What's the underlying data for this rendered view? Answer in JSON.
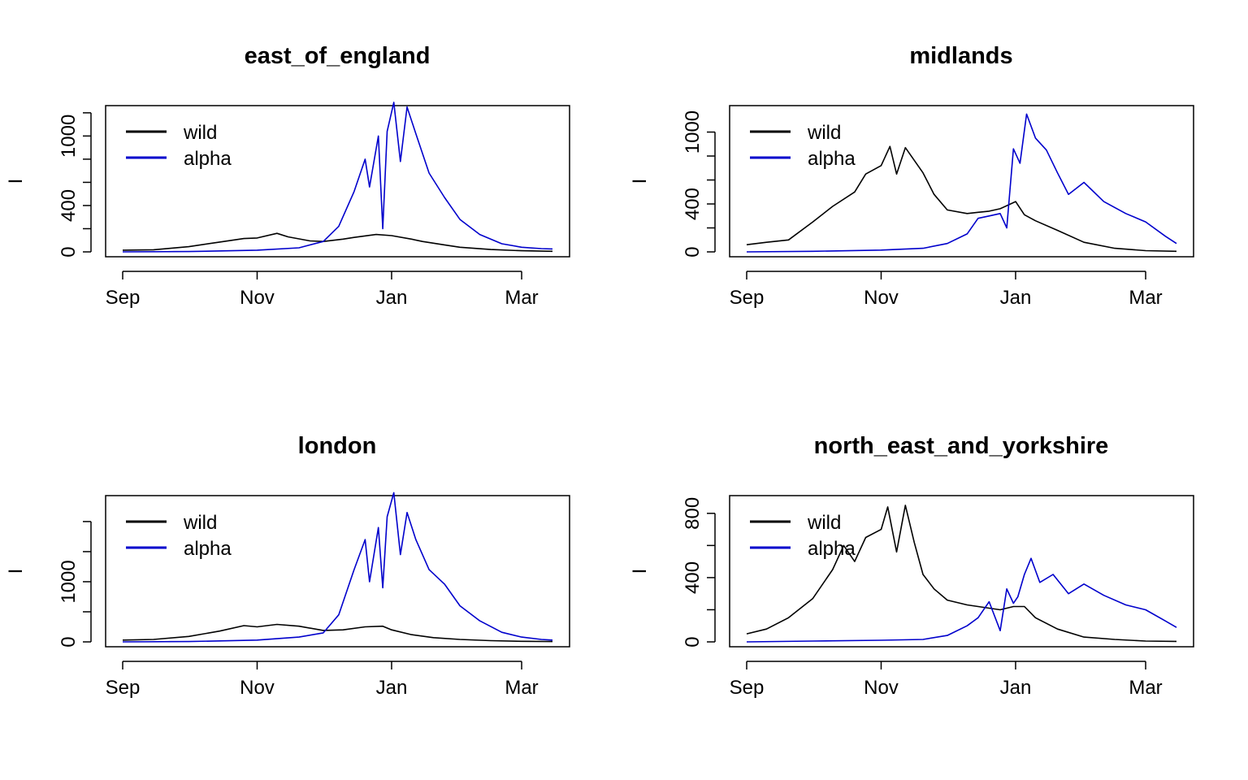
{
  "chart_data": [
    {
      "type": "line",
      "title": "east_of_england",
      "xlabel": "",
      "ylabel": "I",
      "x_ticks": [
        "Sep",
        "Nov",
        "Jan",
        "Mar"
      ],
      "y_ticks": [
        0,
        400,
        1000
      ],
      "ylim": [
        0,
        1220
      ],
      "legend_position": "top-left",
      "grid": false,
      "series": [
        {
          "name": "wild",
          "color": "#000000",
          "x": [
            "2020-09-01",
            "2020-09-15",
            "2020-10-01",
            "2020-10-15",
            "2020-10-26",
            "2020-11-01",
            "2020-11-10",
            "2020-11-15",
            "2020-11-25",
            "2020-12-01",
            "2020-12-10",
            "2020-12-15",
            "2020-12-25",
            "2021-01-01",
            "2021-01-10",
            "2021-01-15",
            "2021-01-25",
            "2021-02-01",
            "2021-02-15",
            "2021-03-01",
            "2021-03-15"
          ],
          "y": [
            15,
            18,
            45,
            85,
            115,
            120,
            160,
            130,
            95,
            90,
            110,
            125,
            150,
            140,
            110,
            90,
            60,
            40,
            20,
            10,
            5
          ]
        },
        {
          "name": "alpha",
          "color": "#0000cc",
          "x": [
            "2020-09-01",
            "2020-10-01",
            "2020-11-01",
            "2020-11-20",
            "2020-12-01",
            "2020-12-08",
            "2020-12-15",
            "2020-12-20",
            "2020-12-22",
            "2020-12-26",
            "2020-12-28",
            "2020-12-30",
            "2021-01-02",
            "2021-01-05",
            "2021-01-08",
            "2021-01-12",
            "2021-01-18",
            "2021-01-25",
            "2021-02-01",
            "2021-02-10",
            "2021-02-20",
            "2021-03-01",
            "2021-03-10",
            "2021-03-15"
          ],
          "y": [
            0,
            3,
            15,
            35,
            90,
            220,
            520,
            800,
            560,
            1000,
            200,
            1040,
            1290,
            780,
            1250,
            1020,
            680,
            470,
            280,
            150,
            70,
            40,
            28,
            25
          ]
        }
      ]
    },
    {
      "type": "line",
      "title": "midlands",
      "xlabel": "",
      "ylabel": "I",
      "x_ticks": [
        "Sep",
        "Nov",
        "Jan",
        "Mar"
      ],
      "y_ticks": [
        0,
        400,
        1000
      ],
      "ylim": [
        0,
        1180
      ],
      "legend_position": "top-left",
      "grid": false,
      "series": [
        {
          "name": "wild",
          "color": "#000000",
          "x": [
            "2020-09-01",
            "2020-09-10",
            "2020-09-20",
            "2020-10-01",
            "2020-10-10",
            "2020-10-20",
            "2020-10-25",
            "2020-11-01",
            "2020-11-05",
            "2020-11-08",
            "2020-11-12",
            "2020-11-20",
            "2020-11-25",
            "2020-12-01",
            "2020-12-10",
            "2020-12-15",
            "2020-12-20",
            "2020-12-25",
            "2021-01-01",
            "2021-01-05",
            "2021-01-10",
            "2021-01-20",
            "2021-02-01",
            "2021-02-15",
            "2021-03-01",
            "2021-03-15"
          ],
          "y": [
            60,
            80,
            100,
            250,
            380,
            500,
            650,
            720,
            880,
            650,
            870,
            660,
            480,
            350,
            320,
            330,
            340,
            360,
            420,
            310,
            260,
            180,
            80,
            30,
            10,
            5
          ]
        },
        {
          "name": "alpha",
          "color": "#0000cc",
          "x": [
            "2020-09-01",
            "2020-10-01",
            "2020-11-01",
            "2020-11-20",
            "2020-12-01",
            "2020-12-10",
            "2020-12-15",
            "2020-12-20",
            "2020-12-25",
            "2020-12-28",
            "2020-12-31",
            "2021-01-03",
            "2021-01-06",
            "2021-01-10",
            "2021-01-15",
            "2021-01-20",
            "2021-01-25",
            "2021-02-01",
            "2021-02-10",
            "2021-02-20",
            "2021-03-01",
            "2021-03-10",
            "2021-03-15"
          ],
          "y": [
            0,
            5,
            15,
            30,
            70,
            150,
            280,
            300,
            320,
            200,
            860,
            740,
            1150,
            950,
            850,
            660,
            480,
            580,
            420,
            320,
            250,
            130,
            70
          ]
        }
      ]
    },
    {
      "type": "line",
      "title": "london",
      "xlabel": "",
      "ylabel": "I",
      "x_ticks": [
        "Sep",
        "Nov",
        "Jan",
        "Mar"
      ],
      "y_ticks": [
        0,
        1000
      ],
      "ylim": [
        0,
        2350
      ],
      "legend_position": "top-left",
      "grid": false,
      "series": [
        {
          "name": "wild",
          "color": "#000000",
          "x": [
            "2020-09-01",
            "2020-09-15",
            "2020-10-01",
            "2020-10-15",
            "2020-10-26",
            "2020-11-01",
            "2020-11-10",
            "2020-11-20",
            "2020-12-01",
            "2020-12-10",
            "2020-12-20",
            "2020-12-28",
            "2021-01-01",
            "2021-01-10",
            "2021-01-20",
            "2021-02-01",
            "2021-02-15",
            "2021-03-01",
            "2021-03-15"
          ],
          "y": [
            30,
            40,
            90,
            180,
            270,
            250,
            290,
            260,
            190,
            200,
            250,
            260,
            200,
            120,
            70,
            40,
            20,
            10,
            5
          ]
        },
        {
          "name": "alpha",
          "color": "#0000cc",
          "x": [
            "2020-09-01",
            "2020-10-01",
            "2020-11-01",
            "2020-11-20",
            "2020-12-01",
            "2020-12-08",
            "2020-12-15",
            "2020-12-20",
            "2020-12-22",
            "2020-12-26",
            "2020-12-28",
            "2020-12-30",
            "2021-01-02",
            "2021-01-05",
            "2021-01-08",
            "2021-01-12",
            "2021-01-18",
            "2021-01-25",
            "2021-02-01",
            "2021-02-10",
            "2021-02-20",
            "2021-03-01",
            "2021-03-10",
            "2021-03-15"
          ],
          "y": [
            0,
            5,
            30,
            80,
            150,
            450,
            1200,
            1700,
            1000,
            1900,
            900,
            2080,
            2480,
            1450,
            2150,
            1700,
            1200,
            960,
            600,
            350,
            160,
            80,
            40,
            30
          ]
        }
      ]
    },
    {
      "type": "line",
      "title": "north_east_and_yorkshire",
      "xlabel": "",
      "ylabel": "I",
      "x_ticks": [
        "Sep",
        "Nov",
        "Jan",
        "Mar"
      ],
      "y_ticks": [
        0,
        400,
        800
      ],
      "ylim": [
        0,
        880
      ],
      "legend_position": "top-left",
      "grid": false,
      "series": [
        {
          "name": "wild",
          "color": "#000000",
          "x": [
            "2020-09-01",
            "2020-09-10",
            "2020-09-20",
            "2020-10-01",
            "2020-10-10",
            "2020-10-15",
            "2020-10-20",
            "2020-10-25",
            "2020-11-01",
            "2020-11-04",
            "2020-11-08",
            "2020-11-12",
            "2020-11-16",
            "2020-11-20",
            "2020-11-25",
            "2020-12-01",
            "2020-12-10",
            "2020-12-20",
            "2020-12-25",
            "2020-12-31",
            "2021-01-05",
            "2021-01-10",
            "2021-01-20",
            "2021-02-01",
            "2021-02-15",
            "2021-03-01",
            "2021-03-15"
          ],
          "y": [
            50,
            80,
            150,
            270,
            450,
            600,
            500,
            650,
            700,
            840,
            560,
            850,
            620,
            420,
            330,
            260,
            230,
            210,
            200,
            220,
            220,
            150,
            80,
            30,
            15,
            5,
            3
          ]
        },
        {
          "name": "alpha",
          "color": "#0000cc",
          "x": [
            "2020-09-01",
            "2020-10-01",
            "2020-11-01",
            "2020-11-20",
            "2020-12-01",
            "2020-12-10",
            "2020-12-15",
            "2020-12-20",
            "2020-12-25",
            "2020-12-28",
            "2020-12-31",
            "2021-01-02",
            "2021-01-05",
            "2021-01-08",
            "2021-01-12",
            "2021-01-18",
            "2021-01-25",
            "2021-02-01",
            "2021-02-10",
            "2021-02-20",
            "2021-03-01",
            "2021-03-10",
            "2021-03-15"
          ],
          "y": [
            0,
            5,
            10,
            15,
            40,
            100,
            150,
            250,
            70,
            330,
            240,
            280,
            420,
            520,
            370,
            420,
            300,
            360,
            290,
            230,
            200,
            130,
            90
          ]
        }
      ]
    }
  ]
}
